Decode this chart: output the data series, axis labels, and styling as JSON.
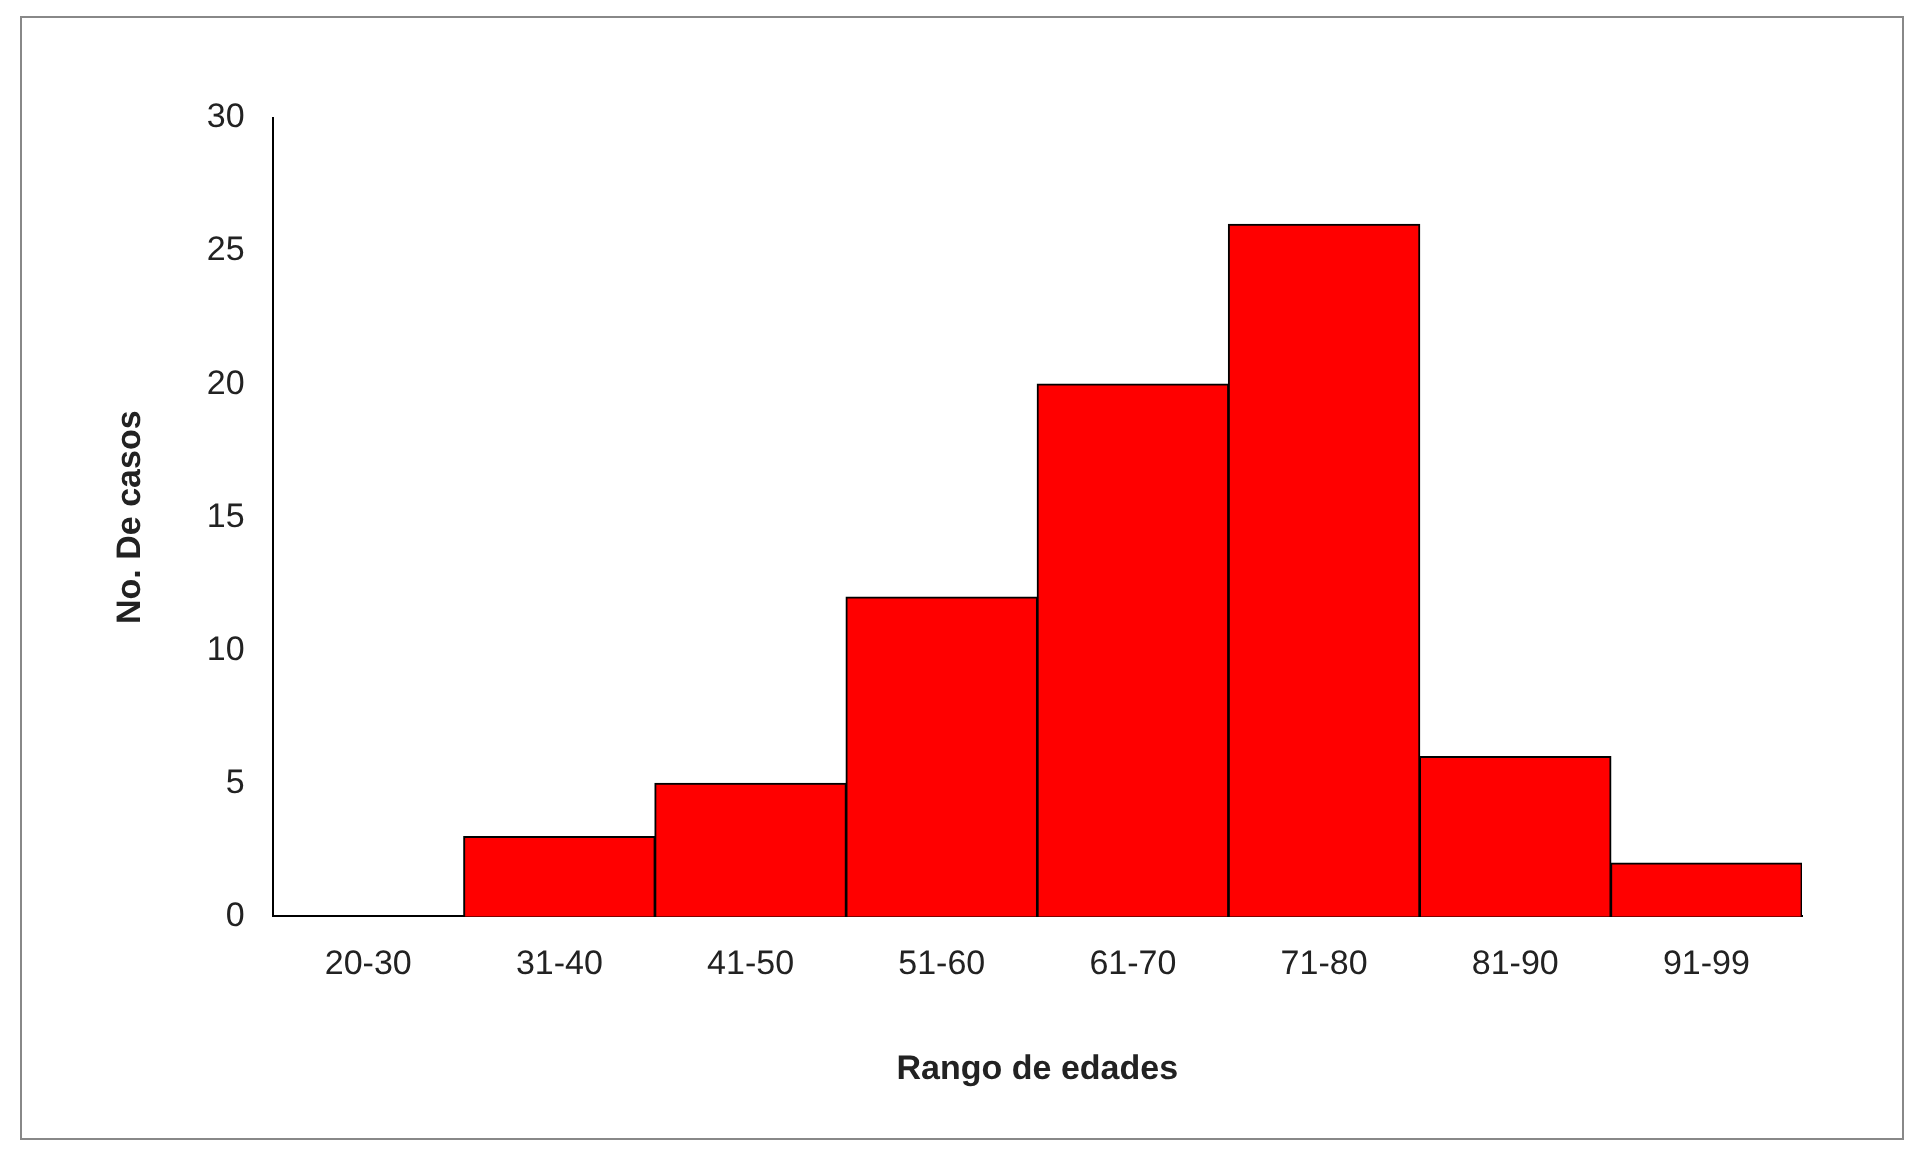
{
  "chart_data": {
    "type": "bar",
    "xlabel": "Rango de edades",
    "ylabel": "No. De casos",
    "categories": [
      "20-30",
      "31-40",
      "41-50",
      "51-60",
      "61-70",
      "71-80",
      "81-90",
      "91-99"
    ],
    "values": [
      0,
      3,
      5,
      12,
      20,
      26,
      6,
      2
    ],
    "color": "#ff0000",
    "ylim": [
      0,
      30
    ],
    "yticks": [
      0,
      5,
      10,
      15,
      20,
      25,
      30
    ],
    "grid": false,
    "legend": false
  }
}
